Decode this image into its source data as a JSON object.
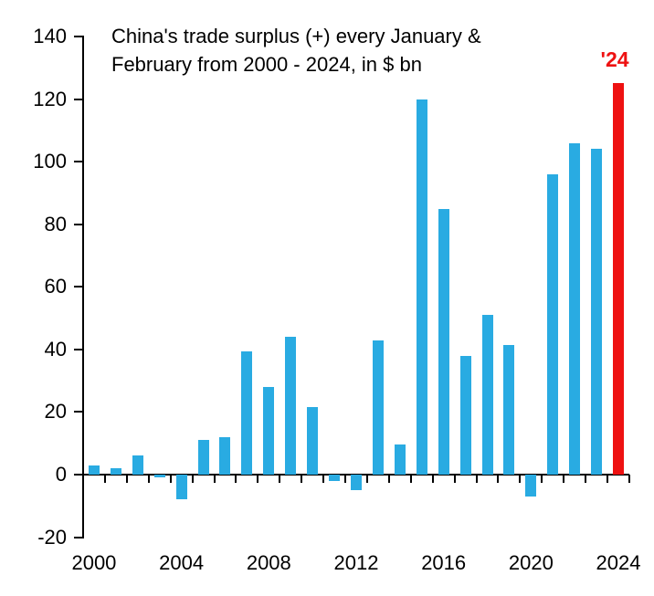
{
  "chart_data": {
    "type": "bar",
    "title": "China's trade surplus (+) every January & February from 2000 - 2024, in $ bn",
    "title_lines": [
      "China's trade surplus (+) every January &",
      "February from 2000 - 2024, in $ bn"
    ],
    "categories": [
      2000,
      2001,
      2002,
      2003,
      2004,
      2005,
      2006,
      2007,
      2008,
      2009,
      2010,
      2011,
      2012,
      2013,
      2014,
      2015,
      2016,
      2017,
      2018,
      2019,
      2020,
      2021,
      2022,
      2023,
      2024
    ],
    "values": [
      3,
      2,
      6,
      -1,
      -8,
      11,
      12,
      39.5,
      28,
      44,
      21.5,
      -2,
      -5,
      43,
      9.5,
      120,
      85,
      38,
      51,
      41.5,
      -7,
      96,
      106,
      104,
      125
    ],
    "ylim": [
      -20,
      140
    ],
    "yticks": [
      -20,
      0,
      20,
      40,
      60,
      80,
      100,
      120,
      140
    ],
    "xtick_labels": [
      "2000",
      "2004",
      "2008",
      "2012",
      "2016",
      "2020",
      "2024"
    ],
    "xtick_indices": [
      0,
      4,
      8,
      12,
      16,
      20,
      24
    ],
    "bar_color": "#29ABE2",
    "highlight_color": "#EE1111",
    "highlight_index": 24,
    "annotation": {
      "text": "'24",
      "color": "#EE1111"
    },
    "grid": false,
    "legend": false,
    "axis_color": "#000000",
    "text_color": "#000000",
    "background": "#FFFFFF"
  }
}
